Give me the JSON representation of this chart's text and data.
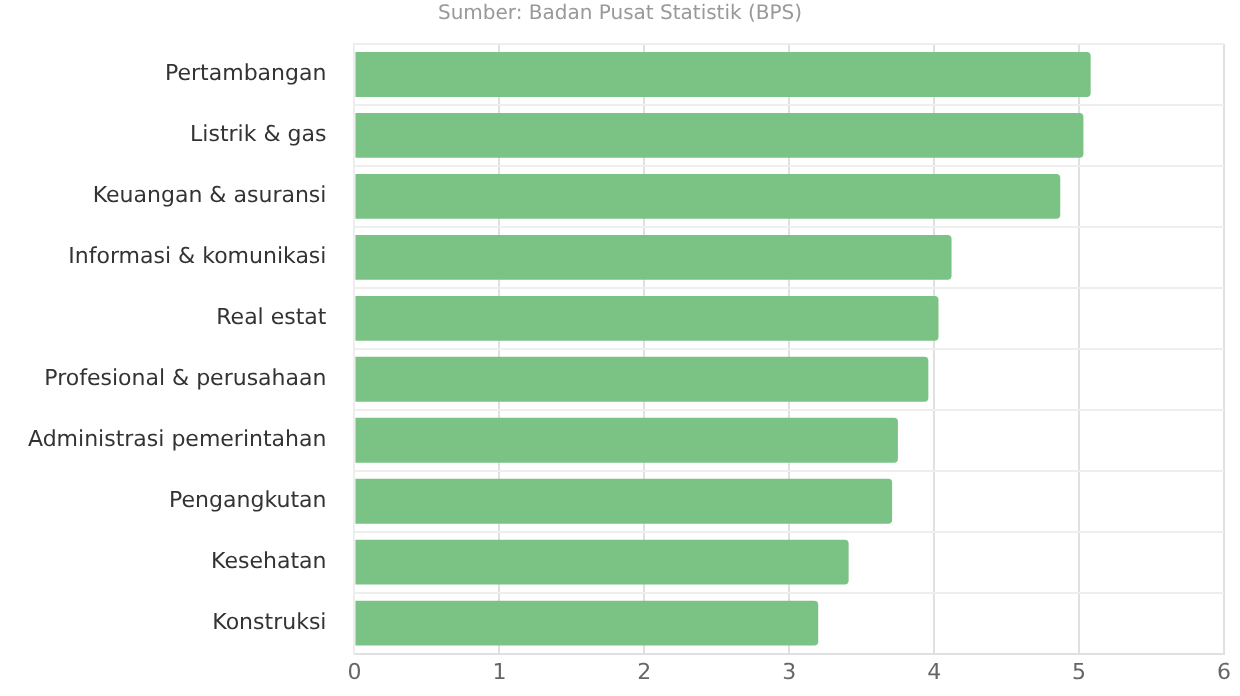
{
  "chart_data": {
    "type": "bar",
    "orientation": "horizontal",
    "annotations": [
      "Sumber: Badan Pusat Statistik (BPS)"
    ],
    "categories": [
      "Pertambangan",
      "Listrik & gas",
      "Keuangan & asuransi",
      "Informasi & komunikasi",
      "Real estat",
      "Profesional & perusahaan",
      "Administrasi pemerintahan",
      "Pengangkutan",
      "Kesehatan",
      "Konstruksi"
    ],
    "values": [
      5.08,
      5.03,
      4.87,
      4.12,
      4.03,
      3.96,
      3.75,
      3.71,
      3.41,
      3.2
    ],
    "color": "#7bc285",
    "xlim": [
      0,
      6
    ],
    "xticks": [
      0,
      1,
      2,
      3,
      4,
      5,
      6
    ],
    "grid": true,
    "legend": false
  }
}
